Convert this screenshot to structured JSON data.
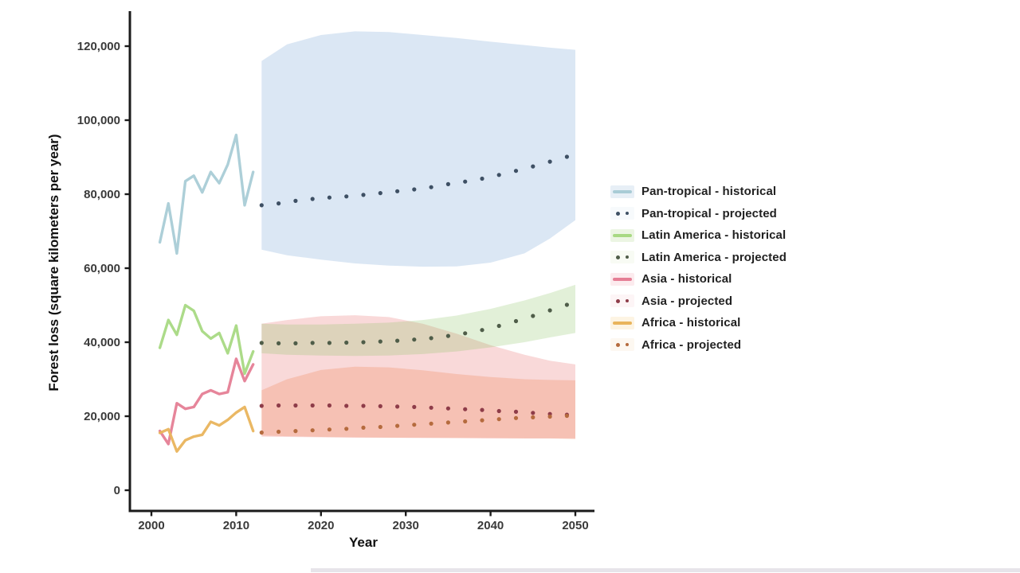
{
  "figure": {
    "ylabel": "Forest loss (square kilometers per year)",
    "xlabel": "Year"
  },
  "legend": {
    "items": [
      {
        "label": "Pan-tropical - historical",
        "type": "line",
        "color": "#a9ccd6",
        "bg": "#e7eff6"
      },
      {
        "label": "Pan-tropical - projected",
        "type": "dots",
        "color": "#3e5064",
        "bg": "#f7fafc"
      },
      {
        "label": "Latin America - historical",
        "type": "line",
        "color": "#a8d983",
        "bg": "#ecf5e3"
      },
      {
        "label": "Latin America - projected",
        "type": "dots",
        "color": "#4f5d49",
        "bg": "#f8fbf4"
      },
      {
        "label": "Asia - historical",
        "type": "line",
        "color": "#e57e95",
        "bg": "#fcebee"
      },
      {
        "label": "Asia - projected",
        "type": "dots",
        "color": "#8e3c49",
        "bg": "#fdf5f6"
      },
      {
        "label": "Africa - historical",
        "type": "line",
        "color": "#e9b45c",
        "bg": "#fdf4e3"
      },
      {
        "label": "Africa - projected",
        "type": "dots",
        "color": "#b56b3e",
        "bg": "#fdf8f1"
      }
    ]
  },
  "chart_data": {
    "type": "line",
    "title": "",
    "xlabel": "Year",
    "ylabel": "Forest loss (square kilometers per year)",
    "xlim": [
      1997,
      2053
    ],
    "ylim": [
      0,
      130000
    ],
    "grid": false,
    "legend_position": "right",
    "x_ticks": [
      2000,
      2010,
      2020,
      2030,
      2040,
      2050
    ],
    "x_tick_labels": [
      "2000",
      "2010",
      "2020",
      "2030",
      "2040",
      "2050"
    ],
    "y_ticks": [
      0,
      20000,
      40000,
      60000,
      80000,
      100000,
      120000
    ],
    "y_tick_labels": [
      "0",
      "20,000",
      "40,000",
      "60,000",
      "80,000",
      "100,000",
      "120,000"
    ],
    "series": [
      {
        "name": "Pan-tropical - historical",
        "style": "line",
        "color": "#a9ccd6",
        "years": [
          2001,
          2002,
          2003,
          2004,
          2005,
          2006,
          2007,
          2008,
          2009,
          2010,
          2011,
          2012
        ],
        "values": [
          67000,
          77500,
          64000,
          83500,
          85000,
          80500,
          86000,
          83000,
          88000,
          96000,
          77000,
          86000
        ]
      },
      {
        "name": "Pan-tropical - projected",
        "style": "dots",
        "color": "#3e5064",
        "years": [
          2013,
          2015,
          2017,
          2019,
          2021,
          2023,
          2025,
          2027,
          2029,
          2031,
          2033,
          2035,
          2037,
          2039,
          2041,
          2043,
          2045,
          2047,
          2049
        ],
        "values": [
          77000,
          77500,
          78200,
          78700,
          79100,
          79400,
          79800,
          80300,
          80800,
          81300,
          81900,
          82700,
          83400,
          84200,
          85200,
          86300,
          87500,
          88800,
          90100
        ]
      },
      {
        "name": "Latin America - historical",
        "style": "line",
        "color": "#a8d983",
        "years": [
          2001,
          2002,
          2003,
          2004,
          2005,
          2006,
          2007,
          2008,
          2009,
          2010,
          2011,
          2012
        ],
        "values": [
          38500,
          46000,
          42000,
          50000,
          48500,
          43000,
          41000,
          42500,
          37000,
          44500,
          31500,
          37500
        ]
      },
      {
        "name": "Latin America - projected",
        "style": "dots",
        "color": "#4f5d49",
        "years": [
          2013,
          2015,
          2017,
          2019,
          2021,
          2023,
          2025,
          2027,
          2029,
          2031,
          2033,
          2035,
          2037,
          2039,
          2041,
          2043,
          2045,
          2047,
          2049
        ],
        "values": [
          39800,
          39700,
          39700,
          39800,
          39800,
          39900,
          40000,
          40200,
          40400,
          40700,
          41100,
          41700,
          42400,
          43300,
          44400,
          45700,
          47100,
          48600,
          50100
        ]
      },
      {
        "name": "Asia - historical",
        "style": "line",
        "color": "#e57e95",
        "years": [
          2001,
          2002,
          2003,
          2004,
          2005,
          2006,
          2007,
          2008,
          2009,
          2010,
          2011,
          2012
        ],
        "values": [
          16000,
          12500,
          23500,
          22000,
          22500,
          26000,
          27000,
          26000,
          26500,
          35500,
          29500,
          34000
        ]
      },
      {
        "name": "Asia - projected",
        "style": "dots",
        "color": "#8e3c49",
        "years": [
          2013,
          2015,
          2017,
          2019,
          2021,
          2023,
          2025,
          2027,
          2029,
          2031,
          2033,
          2035,
          2037,
          2039,
          2041,
          2043,
          2045,
          2047,
          2049
        ],
        "values": [
          22800,
          22900,
          22900,
          22900,
          22900,
          22800,
          22800,
          22700,
          22600,
          22500,
          22300,
          22100,
          21900,
          21700,
          21400,
          21200,
          20900,
          20600,
          20400
        ]
      },
      {
        "name": "Africa - historical",
        "style": "line",
        "color": "#e9b45c",
        "years": [
          2001,
          2002,
          2003,
          2004,
          2005,
          2006,
          2007,
          2008,
          2009,
          2010,
          2011,
          2012
        ],
        "values": [
          15500,
          16500,
          10500,
          13500,
          14500,
          15000,
          18500,
          17500,
          19000,
          21000,
          22500,
          16000
        ]
      },
      {
        "name": "Africa - projected",
        "style": "dots",
        "color": "#b56b3e",
        "years": [
          2013,
          2015,
          2017,
          2019,
          2021,
          2023,
          2025,
          2027,
          2029,
          2031,
          2033,
          2035,
          2037,
          2039,
          2041,
          2043,
          2045,
          2047,
          2049
        ],
        "values": [
          15600,
          15800,
          16000,
          16200,
          16400,
          16600,
          16900,
          17100,
          17400,
          17700,
          18000,
          18300,
          18600,
          18900,
          19200,
          19500,
          19700,
          19900,
          20100
        ]
      }
    ],
    "bands": [
      {
        "name": "Pan-tropical - projection interval",
        "color": "rgba(125,170,215,0.28)",
        "years": [
          2013,
          2016,
          2020,
          2024,
          2028,
          2032,
          2036,
          2040,
          2044,
          2047,
          2050
        ],
        "upper": [
          116000,
          120500,
          123000,
          124000,
          123800,
          123000,
          122200,
          121200,
          120300,
          119600,
          119000
        ],
        "lower": [
          65000,
          63500,
          62300,
          61300,
          60700,
          60400,
          60500,
          61500,
          64000,
          68000,
          73000
        ]
      },
      {
        "name": "Asia - projection interval",
        "color": "rgba(235,130,130,0.30)",
        "years": [
          2013,
          2016,
          2020,
          2024,
          2028,
          2032,
          2036,
          2040,
          2044,
          2047,
          2050
        ],
        "upper": [
          45000,
          46000,
          47000,
          47300,
          46800,
          45000,
          42300,
          39200,
          36600,
          35000,
          34000
        ],
        "lower": [
          14500,
          14400,
          14300,
          14200,
          14200,
          14100,
          14100,
          14000,
          14000,
          14000,
          14000
        ]
      },
      {
        "name": "Africa - projection interval",
        "color": "rgba(240,140,95,0.30)",
        "years": [
          2013,
          2016,
          2020,
          2024,
          2028,
          2032,
          2036,
          2040,
          2044,
          2047,
          2050
        ],
        "upper": [
          27000,
          30000,
          32500,
          33400,
          33200,
          32400,
          31400,
          30600,
          30000,
          29800,
          29700
        ],
        "lower": [
          14800,
          14600,
          14400,
          14300,
          14200,
          14200,
          14100,
          14100,
          14000,
          14000,
          13800
        ]
      },
      {
        "name": "Latin America - projection interval",
        "color": "rgba(140,195,100,0.25)",
        "years": [
          2013,
          2016,
          2020,
          2024,
          2028,
          2032,
          2036,
          2040,
          2044,
          2047,
          2050
        ],
        "upper": [
          45000,
          44800,
          44800,
          45000,
          45300,
          46000,
          47200,
          49000,
          51300,
          53300,
          55500
        ],
        "lower": [
          37000,
          36600,
          36400,
          36300,
          36400,
          36800,
          37500,
          38600,
          40000,
          41300,
          42500
        ]
      }
    ]
  },
  "style": {
    "axis_color": "#1b1b1b",
    "tick_label_color": "#3a3a3a"
  }
}
